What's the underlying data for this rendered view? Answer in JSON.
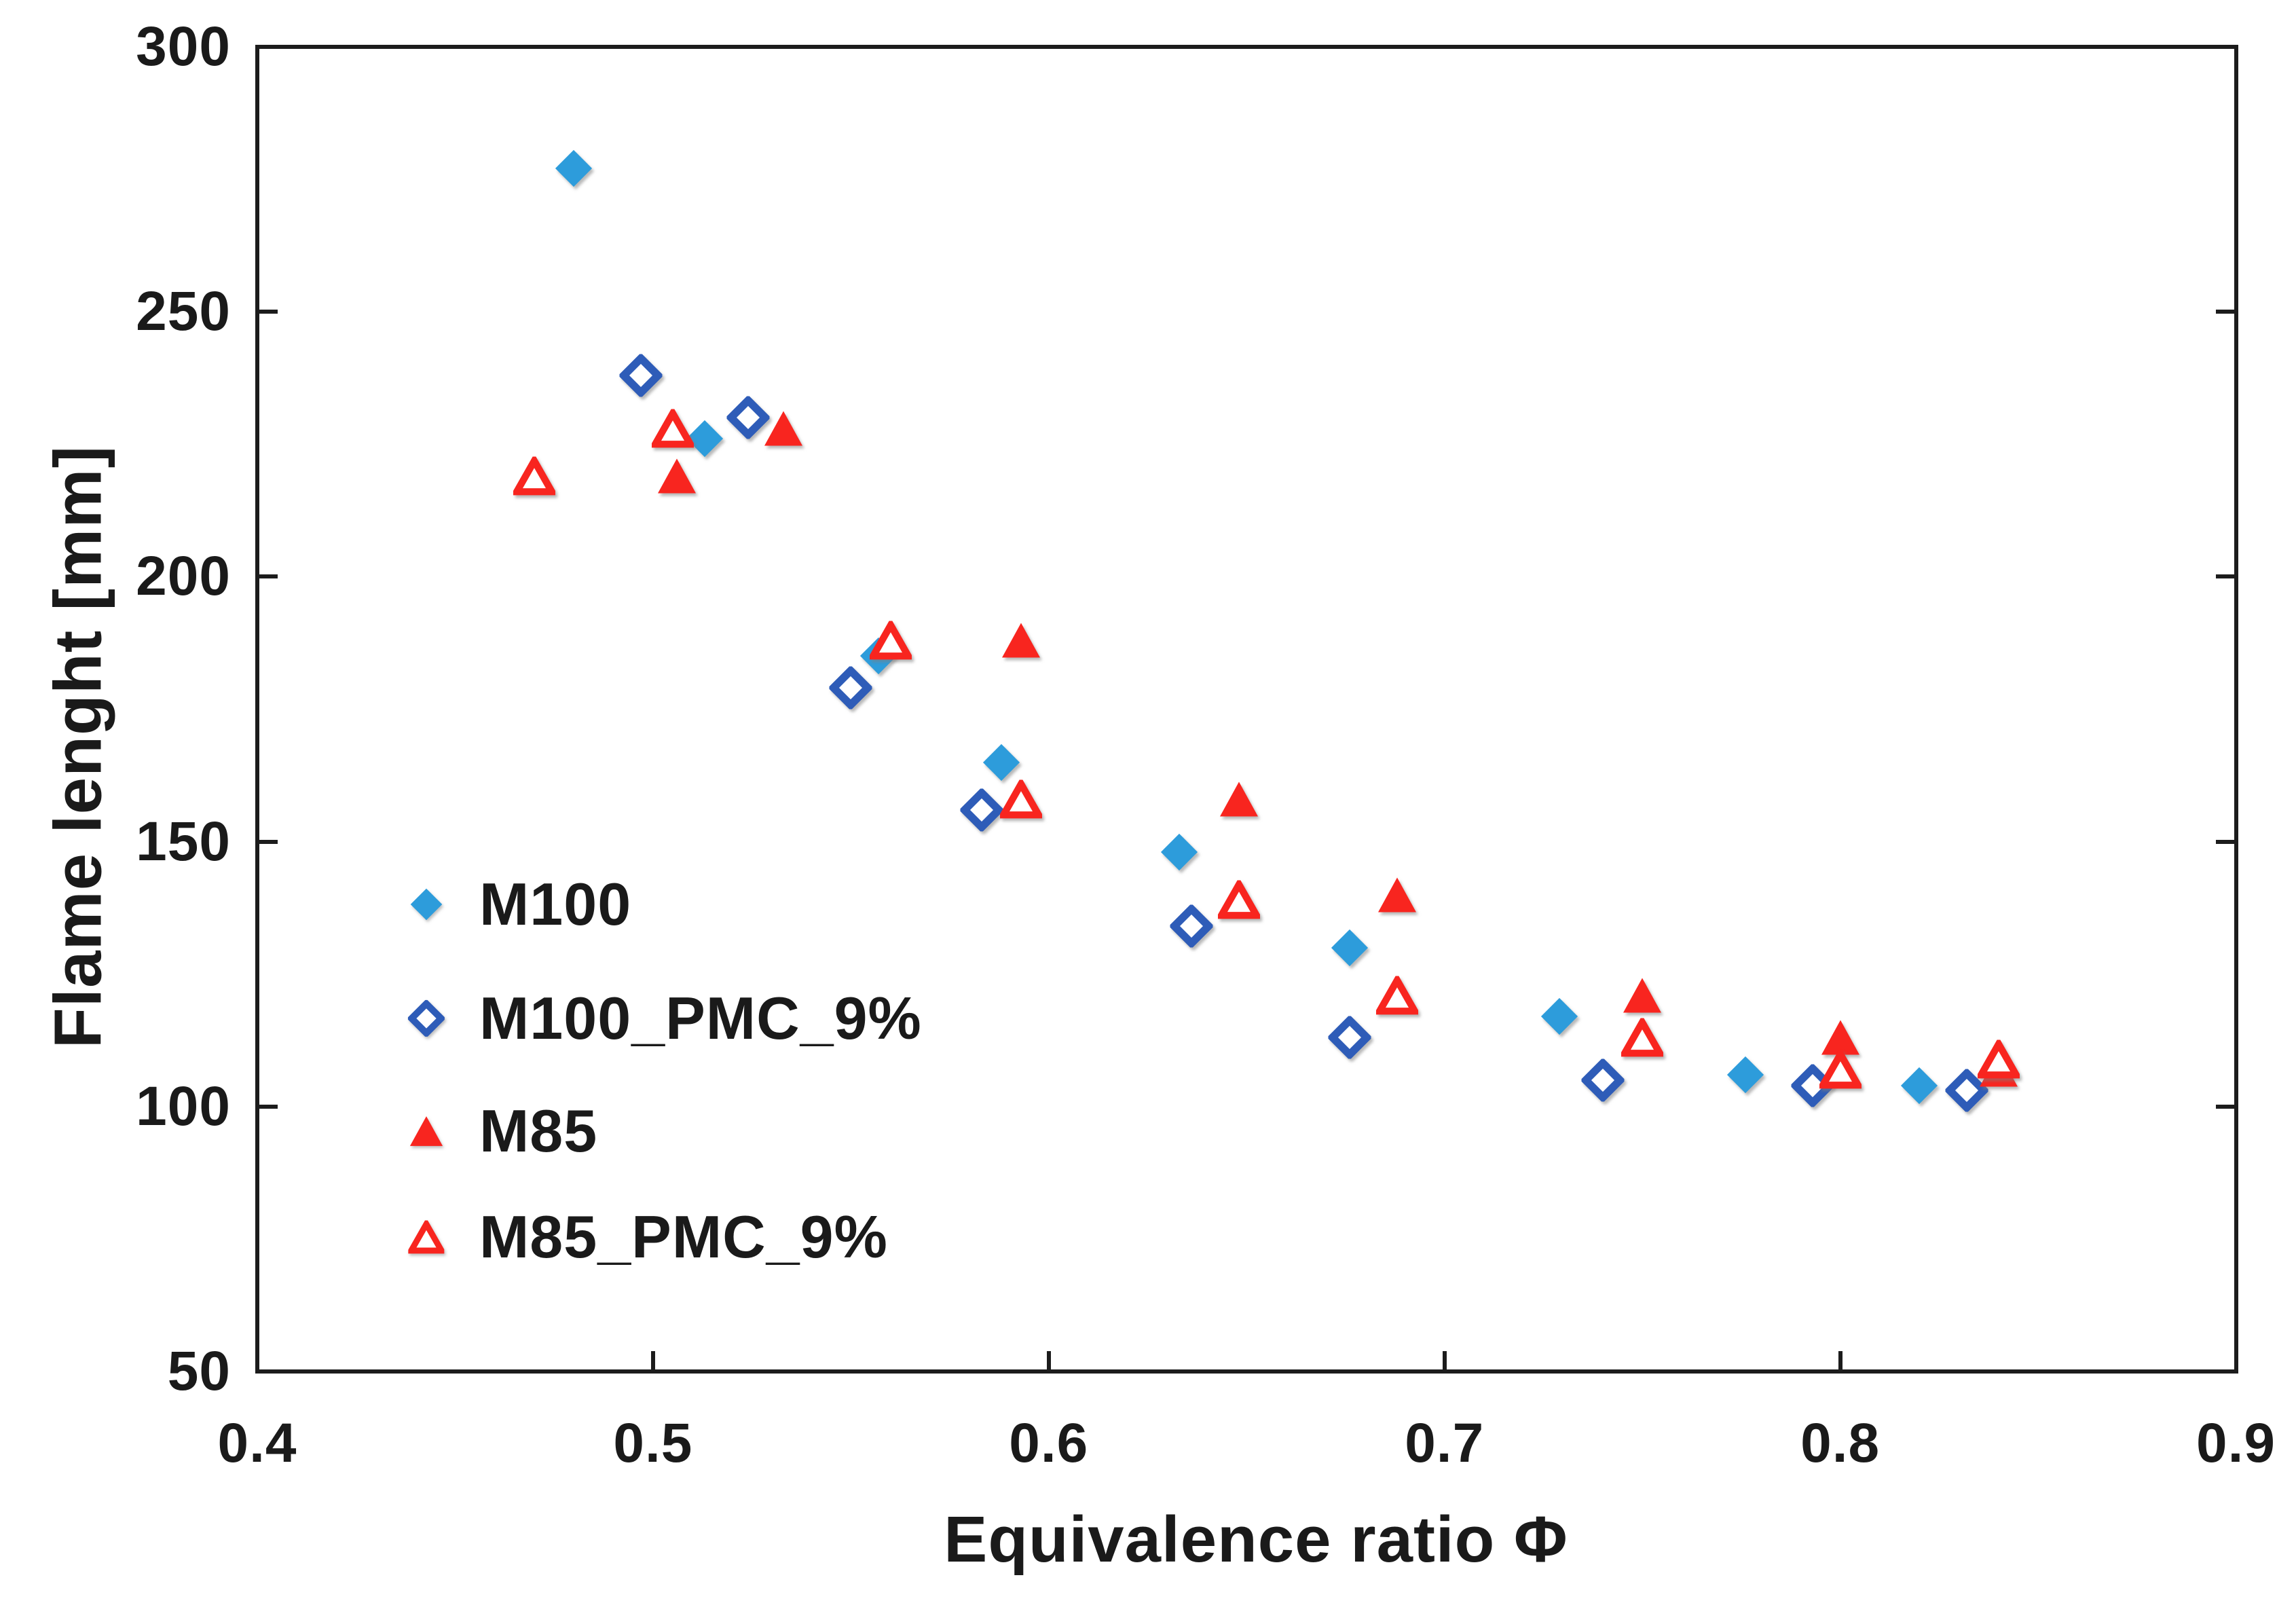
{
  "chart_data": {
    "type": "scatter",
    "title": "",
    "xlabel": "Equivalence ratio Φ",
    "ylabel": "Flame lenght [mm]",
    "xlim": [
      0.4,
      0.9
    ],
    "ylim": [
      50,
      300
    ],
    "x_ticks": [
      "0.4",
      "0.5",
      "0.6",
      "0.7",
      "0.8",
      "0.9"
    ],
    "y_ticks": [
      "300",
      "250",
      "200",
      "150",
      "100",
      "50"
    ],
    "grid": false,
    "legend_position": "inside-left-middle",
    "axis_color": "#1c1c1c",
    "series": [
      {
        "name": "M100",
        "marker": "diamond-filled",
        "color": "#2D9CDB",
        "points": [
          [
            0.48,
            277
          ],
          [
            0.513,
            226
          ],
          [
            0.557,
            185
          ],
          [
            0.588,
            165
          ],
          [
            0.633,
            148
          ],
          [
            0.676,
            130
          ],
          [
            0.729,
            117
          ],
          [
            0.776,
            106
          ],
          [
            0.82,
            104
          ]
        ]
      },
      {
        "name": "M100_PMC_9%",
        "marker": "diamond-open",
        "color": "#2E5CB8",
        "points": [
          [
            0.497,
            238
          ],
          [
            0.524,
            230
          ],
          [
            0.55,
            179
          ],
          [
            0.583,
            156
          ],
          [
            0.636,
            134
          ],
          [
            0.676,
            113
          ],
          [
            0.74,
            105
          ],
          [
            0.793,
            104
          ],
          [
            0.832,
            103
          ]
        ]
      },
      {
        "name": "M85",
        "marker": "triangle-filled",
        "color": "#F8251F",
        "points": [
          [
            0.506,
            219
          ],
          [
            0.533,
            228
          ],
          [
            0.593,
            188
          ],
          [
            0.648,
            158
          ],
          [
            0.688,
            140
          ],
          [
            0.75,
            121
          ],
          [
            0.8,
            113
          ],
          [
            0.84,
            107
          ]
        ]
      },
      {
        "name": "M85_PMC_9%",
        "marker": "triangle-open",
        "color": "#F8251F",
        "points": [
          [
            0.47,
            219
          ],
          [
            0.505,
            228
          ],
          [
            0.56,
            188
          ],
          [
            0.593,
            158
          ],
          [
            0.648,
            139
          ],
          [
            0.688,
            121
          ],
          [
            0.75,
            113
          ],
          [
            0.8,
            107
          ],
          [
            0.84,
            109
          ]
        ]
      }
    ]
  }
}
